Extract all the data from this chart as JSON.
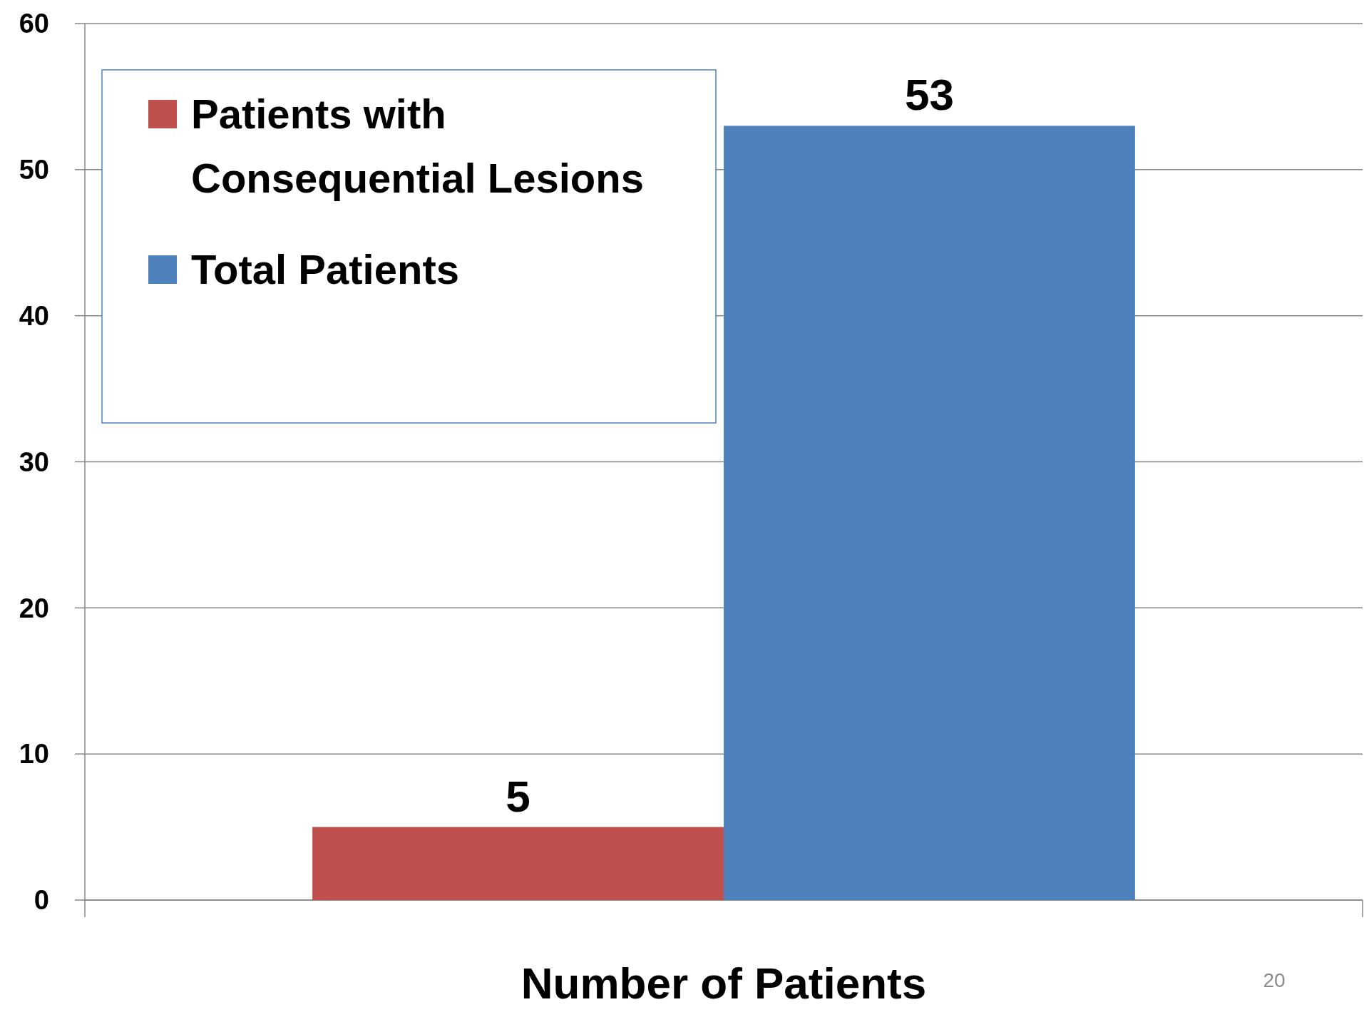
{
  "chart_data": {
    "type": "bar",
    "xlabel": "Number of Patients",
    "categories": [
      null
    ],
    "series": [
      {
        "name": "Patients with Consequential Lesions",
        "color": "#c0504d",
        "values": [
          5
        ]
      },
      {
        "name": "Total Patients",
        "color": "#4f81bd",
        "values": [
          53
        ]
      }
    ],
    "ylim": [
      0,
      60
    ],
    "yticks": [
      0,
      10,
      20,
      30,
      40,
      50,
      60
    ],
    "grid": "y",
    "legend": "top left",
    "data_labels": true,
    "annotations": [
      "20"
    ]
  }
}
